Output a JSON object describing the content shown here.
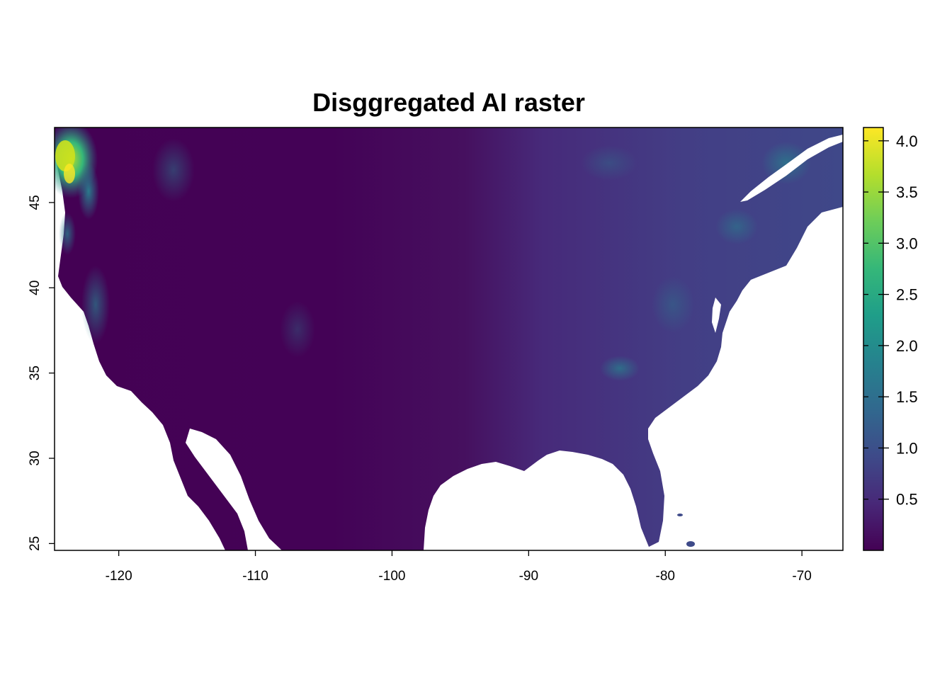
{
  "title": "Disggregated AI raster",
  "map": {
    "x_ticks": [
      "-120",
      "-110",
      "-100",
      "-90",
      "-80",
      "-70"
    ],
    "y_ticks": [
      "25",
      "30",
      "35",
      "40",
      "45"
    ],
    "x_range": [
      -124.7,
      -67.0
    ],
    "y_range": [
      24.6,
      49.4
    ],
    "x_tick_values": [
      -120,
      -110,
      -100,
      -90,
      -80,
      -70
    ],
    "y_tick_values": [
      25,
      30,
      35,
      40,
      45
    ]
  },
  "legend": {
    "palette": "viridis",
    "colors": [
      "#440154",
      "#482878",
      "#3E4A89",
      "#31688E",
      "#26828E",
      "#1F9E89",
      "#35B779",
      "#6DCD59",
      "#B4DE2C",
      "#FDE725"
    ],
    "range": [
      0.0,
      4.13
    ],
    "tick_labels": [
      "0.5",
      "1.0",
      "1.5",
      "2.0",
      "2.5",
      "3.0",
      "3.5",
      "4.0"
    ],
    "tick_values": [
      0.5,
      1.0,
      1.5,
      2.0,
      2.5,
      3.0,
      3.5,
      4.0
    ]
  }
}
